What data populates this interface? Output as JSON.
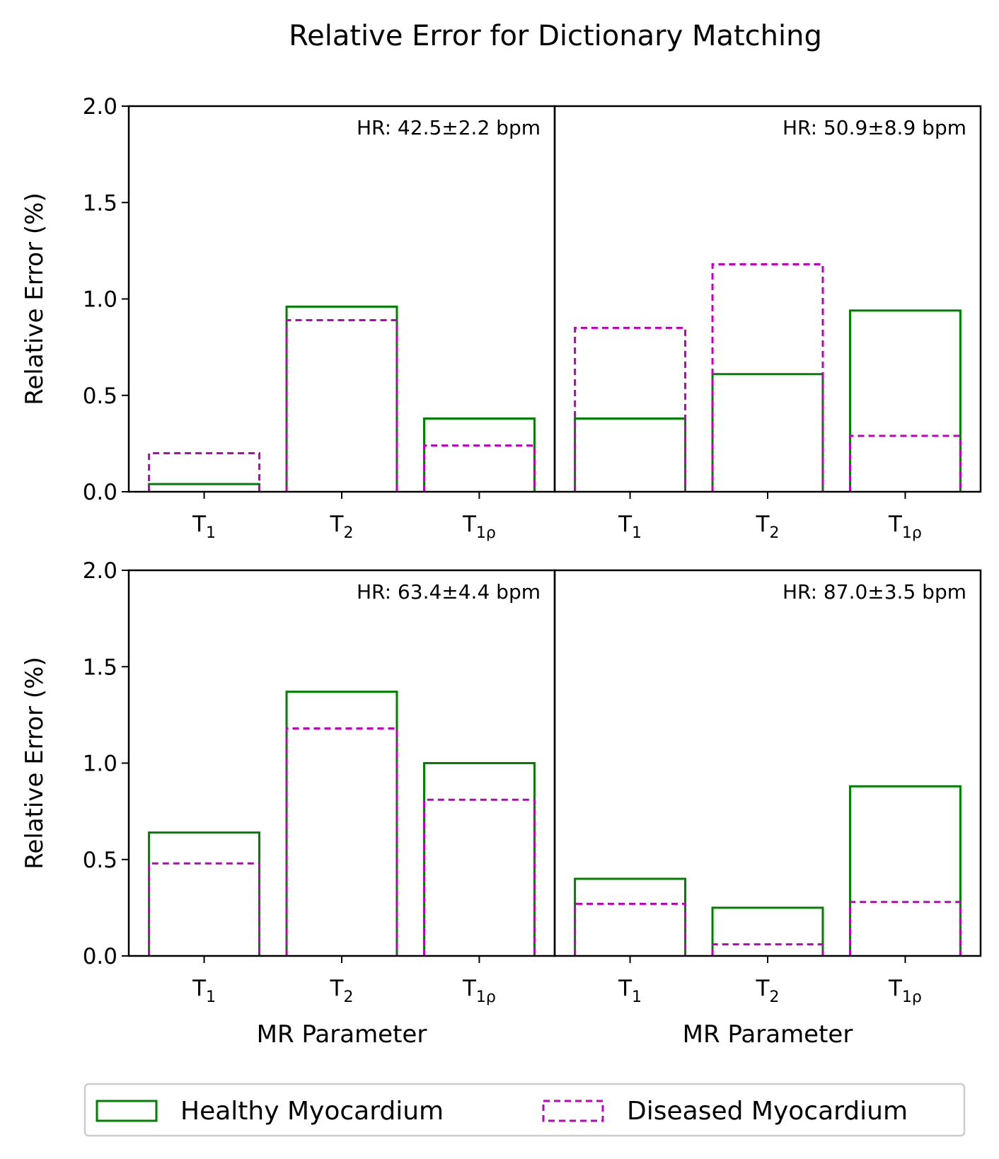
{
  "chart_data": {
    "type": "bar",
    "title": "Relative Error for Dictionary Matching",
    "ylabel": "Relative Error (%)",
    "xlabel": "MR Parameter",
    "ylim": [
      0,
      2.0
    ],
    "yticks": [
      "0.0",
      "0.5",
      "1.0",
      "1.5",
      "2.0"
    ],
    "yticks_values": [
      0,
      0.5,
      1.0,
      1.5,
      2.0
    ],
    "categories": [
      {
        "base": "T",
        "sub": "1"
      },
      {
        "base": "T",
        "sub": "2"
      },
      {
        "base": "T",
        "sub": "1ρ"
      }
    ],
    "legend": {
      "placement": "bottom-center",
      "entries": [
        {
          "name": "Healthy Myocardium",
          "color": "#008000",
          "style": "solid"
        },
        {
          "name": "Diseased Myocardium",
          "color": "#bf00bf",
          "style": "dashed"
        }
      ]
    },
    "panels": [
      {
        "annotation": "HR: 42.5±2.2 bpm",
        "series": [
          {
            "name": "Healthy Myocardium",
            "values": [
              0.04,
              0.96,
              0.38
            ]
          },
          {
            "name": "Diseased Myocardium",
            "values": [
              0.2,
              0.89,
              0.24
            ]
          }
        ]
      },
      {
        "annotation": "HR: 50.9±8.9 bpm",
        "series": [
          {
            "name": "Healthy Myocardium",
            "values": [
              0.38,
              0.61,
              0.94
            ]
          },
          {
            "name": "Diseased Myocardium",
            "values": [
              0.85,
              1.18,
              0.29
            ]
          }
        ]
      },
      {
        "annotation": "HR: 63.4±4.4 bpm",
        "series": [
          {
            "name": "Healthy Myocardium",
            "values": [
              0.64,
              1.37,
              1.0
            ]
          },
          {
            "name": "Diseased Myocardium",
            "values": [
              0.48,
              1.18,
              0.81
            ]
          }
        ]
      },
      {
        "annotation": "HR: 87.0±3.5 bpm",
        "series": [
          {
            "name": "Healthy Myocardium",
            "values": [
              0.4,
              0.25,
              0.88
            ]
          },
          {
            "name": "Diseased Myocardium",
            "values": [
              0.27,
              0.06,
              0.28
            ]
          }
        ]
      }
    ]
  }
}
